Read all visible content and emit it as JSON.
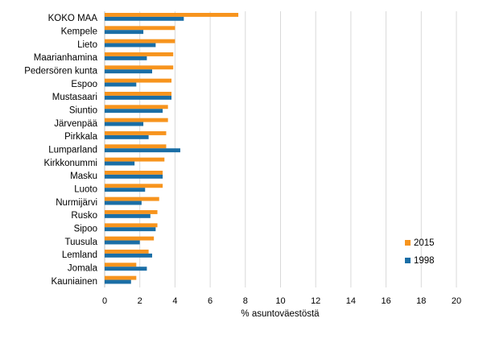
{
  "chart_data": {
    "type": "bar",
    "orientation": "horizontal",
    "title": "",
    "xlabel": "% asuntoväestöstä",
    "ylabel": "",
    "xlim": [
      0,
      20
    ],
    "xticks": [
      0,
      2,
      4,
      6,
      8,
      10,
      12,
      14,
      16,
      18,
      20
    ],
    "grid": true,
    "legend_position": "bottom-right",
    "categories": [
      "KOKO MAA",
      "Kempele",
      "Lieto",
      "Maarianhamina",
      "Pedersören kunta",
      "Espoo",
      "Mustasaari",
      "Siuntio",
      "Järvenpää",
      "Pirkkala",
      "Lumparland",
      "Kirkkonummi",
      "Masku",
      "Luoto",
      "Nurmijärvi",
      "Rusko",
      "Sipoo",
      "Tuusula",
      "Lemland",
      "Jomala",
      "Kauniainen"
    ],
    "series": [
      {
        "name": "2015",
        "color": "#f7941d",
        "values": [
          7.6,
          4.0,
          4.0,
          3.9,
          3.9,
          3.8,
          3.8,
          3.6,
          3.6,
          3.5,
          3.5,
          3.4,
          3.3,
          3.3,
          3.1,
          3.0,
          3.0,
          2.8,
          2.5,
          1.8,
          1.8
        ]
      },
      {
        "name": "1998",
        "color": "#1a6ea6",
        "values": [
          4.5,
          2.2,
          2.9,
          2.4,
          2.7,
          1.8,
          3.8,
          3.3,
          2.2,
          2.5,
          4.3,
          1.7,
          3.3,
          2.3,
          2.1,
          2.6,
          2.9,
          2.0,
          2.7,
          2.4,
          1.5
        ]
      }
    ]
  }
}
